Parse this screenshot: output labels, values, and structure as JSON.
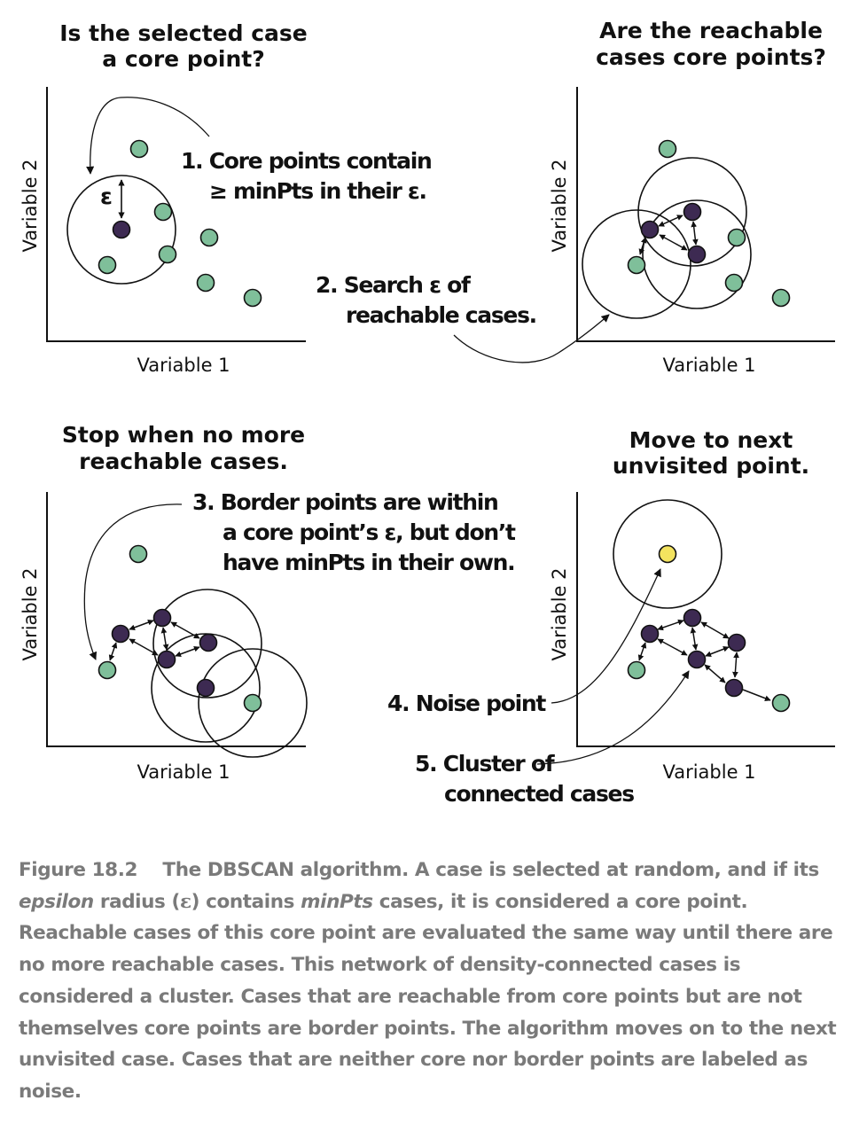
{
  "panels": [
    {
      "title": [
        "Is the selected case",
        "a core point?"
      ],
      "y_axis": "Variable 2",
      "x_axis": "Variable 1",
      "epsilon_symbol": "ε"
    },
    {
      "title": [
        "Are the reachable",
        "cases core points?"
      ],
      "y_axis": "Variable 2",
      "x_axis": "Variable 1"
    },
    {
      "title": [
        "Stop when no more",
        "reachable cases."
      ],
      "y_axis": "Variable 2",
      "x_axis": "Variable 1"
    },
    {
      "title": [
        "Move to next",
        "unvisited point."
      ],
      "y_axis": "Variable 2",
      "x_axis": "Variable 1"
    }
  ],
  "annotations": {
    "step1": [
      "1. Core points contain",
      "≥  minPts in their ε."
    ],
    "step2": [
      "2. Search ε of",
      "reachable cases."
    ],
    "step3": [
      "3. Border points are within",
      "a core point’s ε, but don’t",
      "have minPts in their own."
    ],
    "step4": [
      "4. Noise point"
    ],
    "step5": [
      "5. Cluster of",
      "connected cases"
    ]
  },
  "colors": {
    "core_point": "#3d2a52",
    "border_point": "#7fbf9a",
    "noise_point": "#f3e35f",
    "caption_text": "#7a7a7a"
  },
  "caption": {
    "label": "Figure 18.2",
    "part1": "The DBSCAN algorithm. A case is selected at random, and if its ",
    "epsilon_word": "epsilon",
    "part2": " radius (",
    "epsilon_symbol": "ε",
    "part3": ") contains ",
    "minpts_word": "minPts",
    "part4": " cases, it is considered a core point. Reachable cases of this core point are evaluated the same way until there are no more reachable cases. This network of density-connected cases is considered a cluster. Cases that are reachable from core points but are not themselves core points are border points. The algorithm moves on to the next unvisited case. Cases that are neither core nor border points are labeled as noise."
  }
}
